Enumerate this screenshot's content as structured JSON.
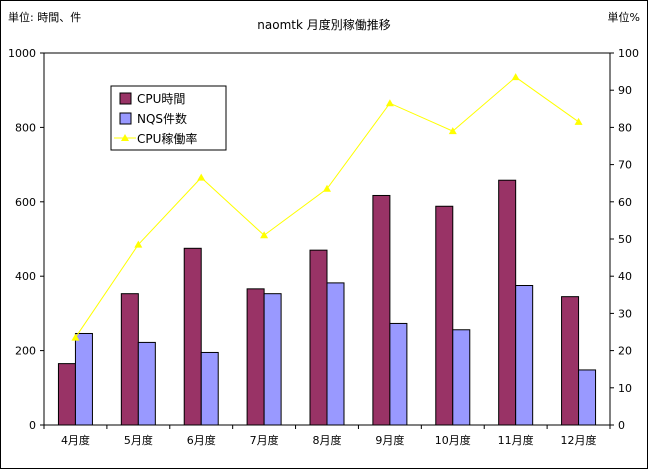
{
  "chart_data": {
    "type": "bar",
    "title": "naomtk 月度別稼働推移",
    "y_left_label": "単位: 時間、件",
    "y_right_label": "単位%",
    "categories": [
      "4月度",
      "5月度",
      "6月度",
      "7月度",
      "8月度",
      "9月度",
      "10月度",
      "11月度",
      "12月度"
    ],
    "ylim_left": [
      0,
      1000
    ],
    "yticks_left": [
      "0",
      "200",
      "400",
      "600",
      "800",
      "1000"
    ],
    "ylim_right": [
      0,
      100
    ],
    "yticks_right": [
      "0",
      "10",
      "20",
      "30",
      "40",
      "50",
      "60",
      "70",
      "80",
      "90",
      "100"
    ],
    "grid": false,
    "legend_position": "upper-left inside",
    "series": [
      {
        "name": "CPU時間",
        "kind": "bar",
        "axis": "left",
        "color": "#993366",
        "values": [
          165,
          353,
          475,
          366,
          470,
          617,
          588,
          658,
          345
        ]
      },
      {
        "name": "NQS件数",
        "kind": "bar",
        "axis": "left",
        "color": "#9999ff",
        "values": [
          246,
          222,
          195,
          353,
          382,
          273,
          256,
          375,
          148
        ]
      },
      {
        "name": "CPU稼働率",
        "kind": "line",
        "axis": "right",
        "color": "#ffff00",
        "values": [
          23.5,
          48.5,
          66.5,
          51,
          63.5,
          86.5,
          79,
          93.5,
          81.5
        ]
      }
    ]
  }
}
